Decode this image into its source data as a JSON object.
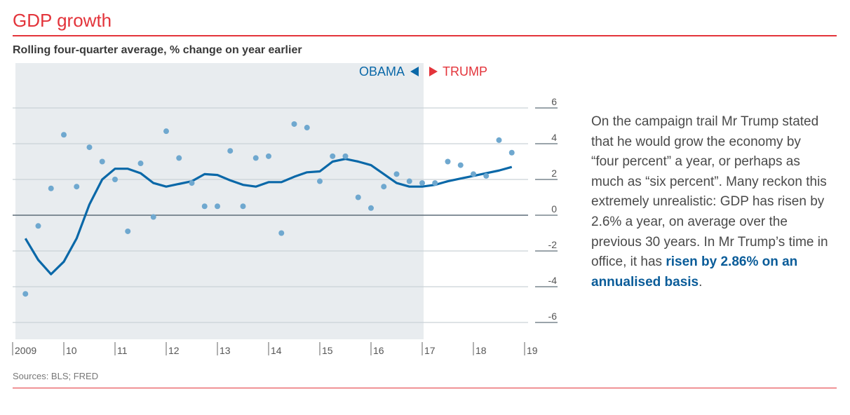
{
  "title": "GDP growth",
  "subtitle": "Rolling four-quarter average, % change on year earlier",
  "sources": "Sources: BLS; FRED",
  "note": {
    "text": "On the campaign trail Mr Trump stated that he would grow the economy by “four percent” a year, or perhaps as much as “six percent”. Many reckon this extremely unrealistic: GDP has risen by 2.6% a year, on average over the previous 30 years. In Mr Trump’s time in office, it has ",
    "highlight": "risen by 2.86% on an annualised basis",
    "end": "."
  },
  "chart_data": {
    "type": "line",
    "title": "GDP growth",
    "subtitle": "Rolling four-quarter average, % change on year earlier",
    "x_tick_labels": [
      "2009",
      "10",
      "11",
      "12",
      "13",
      "14",
      "15",
      "16",
      "17",
      "18",
      "19"
    ],
    "y_ticks": [
      6,
      4,
      2,
      0,
      -2,
      -4,
      -6
    ],
    "ylim": [
      -6.5,
      8.5
    ],
    "xlim": [
      2009,
      2019
    ],
    "grid": true,
    "shaded_region": {
      "from": 2009,
      "to": 2017,
      "label_left": "OBAMA",
      "label_right": "TRUMP"
    },
    "colors": {
      "line": "#0a68a8",
      "dots": "#6fa8cf",
      "shade": "#e8ecef",
      "obama": "#0a68a8",
      "trump": "#e3343b"
    },
    "x": [
      2009.25,
      2009.5,
      2009.75,
      2010,
      2010.25,
      2010.5,
      2010.75,
      2011,
      2011.25,
      2011.5,
      2011.75,
      2012,
      2012.25,
      2012.5,
      2012.75,
      2013,
      2013.25,
      2013.5,
      2013.75,
      2014,
      2014.25,
      2014.5,
      2014.75,
      2015,
      2015.25,
      2015.5,
      2015.75,
      2016,
      2016.25,
      2016.5,
      2016.75,
      2017,
      2017.25,
      2017.5,
      2017.75,
      2018,
      2018.25,
      2018.5,
      2018.75
    ],
    "series": [
      {
        "kind": "dots",
        "values": [
          -4.4,
          -0.6,
          1.5,
          4.5,
          1.6,
          3.8,
          3.0,
          2.0,
          -0.9,
          2.9,
          -0.1,
          4.7,
          3.2,
          1.8,
          0.5,
          0.5,
          3.6,
          0.5,
          3.2,
          3.3,
          -1.0,
          5.1,
          4.9,
          1.9,
          3.3,
          3.3,
          1.0,
          0.4,
          1.6,
          2.3,
          1.9,
          1.8,
          1.8,
          3.0,
          2.8,
          2.3,
          2.2,
          4.2,
          3.5
        ]
      },
      {
        "kind": "line",
        "values": [
          -1.3,
          -2.5,
          -3.3,
          -2.6,
          -1.3,
          0.6,
          2.0,
          2.6,
          2.6,
          2.35,
          1.8,
          1.6,
          1.75,
          1.9,
          2.3,
          2.25,
          1.95,
          1.7,
          1.6,
          1.85,
          1.85,
          2.15,
          2.4,
          2.45,
          3.0,
          3.15,
          3.0,
          2.8,
          2.3,
          1.8,
          1.6,
          1.6,
          1.7,
          1.9,
          2.05,
          2.2,
          2.35,
          2.5,
          2.7
        ]
      }
    ]
  }
}
